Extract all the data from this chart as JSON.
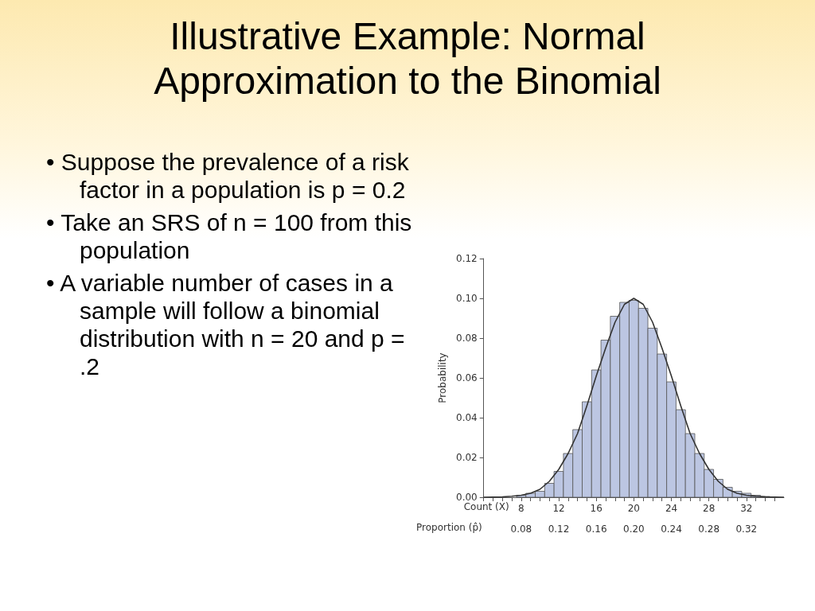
{
  "chart_data": {
    "type": "histogram",
    "title": "Illustrative Example: Normal Approximation to the Binomial",
    "annotations": [
      "• Suppose the prevalence of a risk factor in a population is p = 0.2",
      "• Take an SRS of n = 100 from this population",
      "• A variable number of cases in a sample will follow a binomial distribution with n = 20 and p = .2"
    ],
    "xlabel": "Count (X)",
    "x2label": "Proportion (p̂)",
    "ylabel": "Probability",
    "bins": [
      7.5,
      8.5,
      9.5,
      10.5,
      11.5,
      12.5,
      13.5,
      14.5,
      15.5,
      16.5,
      17.5,
      18.5,
      19.5,
      20.5,
      21.5,
      22.5,
      23.5,
      24.5,
      25.5,
      26.5,
      27.5,
      28.5,
      29.5,
      30.5,
      31.5,
      32.5,
      33.5,
      34.5
    ],
    "values": [
      0.001,
      0.002,
      0.003,
      0.007,
      0.013,
      0.022,
      0.034,
      0.048,
      0.064,
      0.079,
      0.091,
      0.098,
      0.099,
      0.095,
      0.085,
      0.072,
      0.058,
      0.044,
      0.032,
      0.022,
      0.014,
      0.009,
      0.005,
      0.003,
      0.002,
      0.001,
      0.0004
    ],
    "color": "#bcc6e2",
    "series": [
      {
        "type": "line",
        "color": "#333333",
        "x": [
          4,
          5,
          6,
          7,
          8,
          9,
          10,
          11,
          12,
          13,
          14,
          15,
          16,
          17,
          18,
          19,
          20,
          21,
          22,
          23,
          24,
          25,
          26,
          27,
          28,
          29,
          30,
          31,
          32,
          33,
          34,
          35,
          36
        ],
        "values": [
          0.0,
          0.0001,
          0.0002,
          0.0005,
          0.001,
          0.002,
          0.004,
          0.008,
          0.014,
          0.022,
          0.032,
          0.046,
          0.061,
          0.075,
          0.088,
          0.097,
          0.1,
          0.097,
          0.088,
          0.075,
          0.061,
          0.046,
          0.032,
          0.022,
          0.014,
          0.008,
          0.004,
          0.002,
          0.001,
          0.0005,
          0.0002,
          0.0001,
          0.0
        ]
      }
    ],
    "marker": "none",
    "xlim": [
      4,
      36
    ],
    "xticks": [
      {
        "value": 4,
        "label": null
      },
      {
        "value": 5,
        "label": null
      },
      {
        "value": 6,
        "label": null
      },
      {
        "value": 7,
        "label": null
      },
      8,
      {
        "value": 9,
        "label": null
      },
      {
        "value": 10,
        "label": null
      },
      {
        "value": 11,
        "label": null
      },
      12,
      {
        "value": 13,
        "label": null
      },
      {
        "value": 14,
        "label": null
      },
      {
        "value": 15,
        "label": null
      },
      16,
      {
        "value": 17,
        "label": null
      },
      {
        "value": 18,
        "label": null
      },
      {
        "value": 19,
        "label": null
      },
      20,
      {
        "value": 21,
        "label": null
      },
      {
        "value": 22,
        "label": null
      },
      {
        "value": 23,
        "label": null
      },
      24,
      {
        "value": 25,
        "label": null
      },
      {
        "value": 26,
        "label": null
      },
      {
        "value": 27,
        "label": null
      },
      28,
      {
        "value": 29,
        "label": null
      },
      {
        "value": 30,
        "label": null
      },
      {
        "value": 31,
        "label": null
      },
      32,
      {
        "value": 33,
        "label": null
      },
      {
        "value": 34,
        "label": null
      },
      {
        "value": 35,
        "label": null
      }
    ],
    "x2lim": [
      0.04,
      0.36
    ],
    "x2ticks": [
      0.08,
      0.12,
      0.16,
      {
        "value": 0.2,
        "label": "0.20"
      },
      0.24,
      0.28,
      0.32
    ],
    "ylim": [
      0,
      0.12
    ],
    "yticks": [
      {
        "value": 0,
        "label": "0.00"
      },
      0.02,
      0.04,
      0.06,
      0.08,
      {
        "value": 0.1,
        "label": "0.10"
      },
      0.12
    ]
  }
}
